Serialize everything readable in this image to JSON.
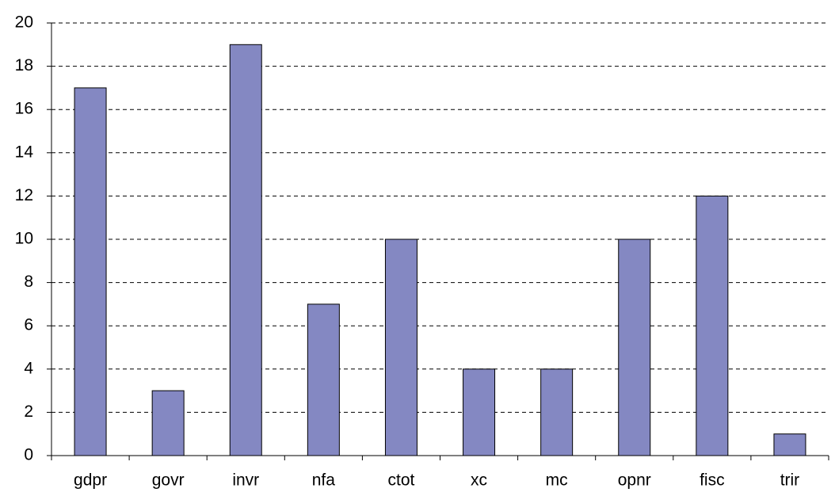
{
  "chart_data": {
    "type": "bar",
    "categories": [
      "gdpr",
      "govr",
      "invr",
      "nfa",
      "ctot",
      "xc",
      "mc",
      "opnr",
      "fisc",
      "trir"
    ],
    "values": [
      17,
      3,
      19,
      7,
      10,
      4,
      4,
      10,
      12,
      1
    ],
    "color": "#8488c2",
    "ylim": [
      0,
      20
    ],
    "yticks": [
      0,
      2,
      4,
      6,
      8,
      10,
      12,
      14,
      16,
      18,
      20
    ],
    "grid": true
  }
}
